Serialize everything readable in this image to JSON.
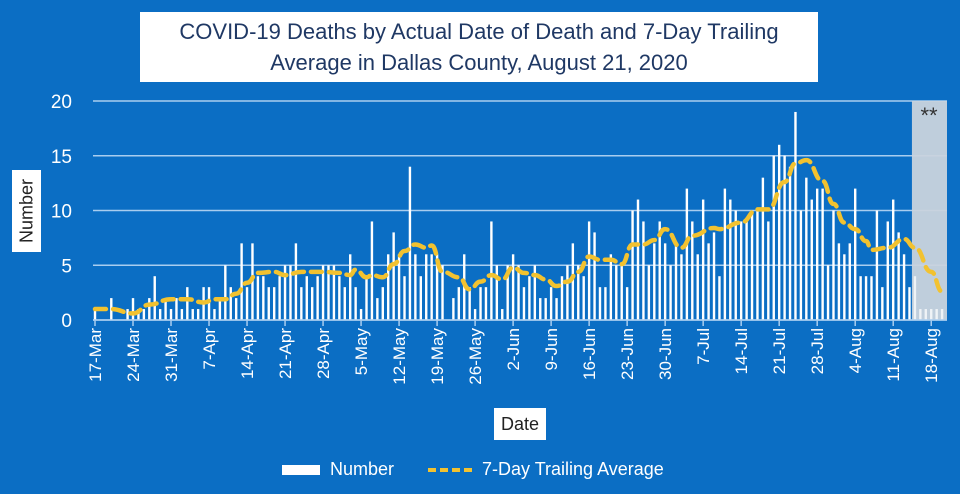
{
  "chart_data": {
    "type": "bar",
    "title": "COVID-19 Deaths by Actual Date of Death and 7-Day Trailing Average in Dallas County, August 21, 2020",
    "title_lines": [
      "COVID-19 Deaths by Actual Date of Death and 7-Day Trailing",
      "Average in Dallas County, August 21, 2020"
    ],
    "xlabel": "Date",
    "ylabel": "Number",
    "ylim": [
      0,
      20
    ],
    "yticks": [
      "0",
      "5",
      "10",
      "15",
      "20"
    ],
    "grid": true,
    "legend_position": "bottom",
    "xtick_labels": [
      "17-Mar",
      "24-Mar",
      "31-Mar",
      "7-Apr",
      "14-Apr",
      "21-Apr",
      "28-Apr",
      "5-May",
      "12-May",
      "19-May",
      "26-May",
      "2-Jun",
      "9-Jun",
      "16-Jun",
      "23-Jun",
      "30-Jun",
      "7-Jul",
      "14-Jul",
      "21-Jul",
      "28-Jul",
      "4-Aug",
      "11-Aug",
      "18-Aug"
    ],
    "dates": [
      "17-Mar",
      "18-Mar",
      "19-Mar",
      "20-Mar",
      "21-Mar",
      "22-Mar",
      "23-Mar",
      "24-Mar",
      "25-Mar",
      "26-Mar",
      "27-Mar",
      "28-Mar",
      "29-Mar",
      "30-Mar",
      "31-Mar",
      "1-Apr",
      "2-Apr",
      "3-Apr",
      "4-Apr",
      "5-Apr",
      "6-Apr",
      "7-Apr",
      "8-Apr",
      "9-Apr",
      "10-Apr",
      "11-Apr",
      "12-Apr",
      "13-Apr",
      "14-Apr",
      "15-Apr",
      "16-Apr",
      "17-Apr",
      "18-Apr",
      "19-Apr",
      "20-Apr",
      "21-Apr",
      "22-Apr",
      "23-Apr",
      "24-Apr",
      "25-Apr",
      "26-Apr",
      "27-Apr",
      "28-Apr",
      "29-Apr",
      "30-Apr",
      "1-May",
      "2-May",
      "3-May",
      "4-May",
      "5-May",
      "6-May",
      "7-May",
      "8-May",
      "9-May",
      "10-May",
      "11-May",
      "12-May",
      "13-May",
      "14-May",
      "15-May",
      "16-May",
      "17-May",
      "18-May",
      "19-May",
      "20-May",
      "21-May",
      "22-May",
      "23-May",
      "24-May",
      "25-May",
      "26-May",
      "27-May",
      "28-May",
      "29-May",
      "30-May",
      "31-May",
      "1-Jun",
      "2-Jun",
      "3-Jun",
      "4-Jun",
      "5-Jun",
      "6-Jun",
      "7-Jun",
      "8-Jun",
      "9-Jun",
      "10-Jun",
      "11-Jun",
      "12-Jun",
      "13-Jun",
      "14-Jun",
      "15-Jun",
      "16-Jun",
      "17-Jun",
      "18-Jun",
      "19-Jun",
      "20-Jun",
      "21-Jun",
      "22-Jun",
      "23-Jun",
      "24-Jun",
      "25-Jun",
      "26-Jun",
      "27-Jun",
      "28-Jun",
      "29-Jun",
      "30-Jun",
      "1-Jul",
      "2-Jul",
      "3-Jul",
      "4-Jul",
      "5-Jul",
      "6-Jul",
      "7-Jul",
      "8-Jul",
      "9-Jul",
      "10-Jul",
      "11-Jul",
      "12-Jul",
      "13-Jul",
      "14-Jul",
      "15-Jul",
      "16-Jul",
      "17-Jul",
      "18-Jul",
      "19-Jul",
      "20-Jul",
      "21-Jul",
      "22-Jul",
      "23-Jul",
      "24-Jul",
      "25-Jul",
      "26-Jul",
      "27-Jul",
      "28-Jul",
      "29-Jul",
      "30-Jul",
      "31-Jul",
      "1-Aug",
      "2-Aug",
      "3-Aug",
      "4-Aug",
      "5-Aug",
      "6-Aug",
      "7-Aug",
      "8-Aug",
      "9-Aug",
      "10-Aug",
      "11-Aug",
      "12-Aug",
      "13-Aug",
      "14-Aug",
      "15-Aug",
      "16-Aug",
      "17-Aug",
      "18-Aug",
      "19-Aug",
      "20-Aug"
    ],
    "series": [
      {
        "name": "Number",
        "type": "bar",
        "color": "#ffffff",
        "values": [
          1,
          0,
          0,
          2,
          0,
          0,
          1,
          2,
          1,
          1,
          2,
          4,
          1,
          2,
          1,
          2,
          1,
          3,
          1,
          1,
          3,
          3,
          1,
          2,
          5,
          3,
          2,
          7,
          3,
          7,
          4,
          4,
          3,
          3,
          4,
          5,
          5,
          7,
          3,
          4,
          3,
          4,
          5,
          5,
          5,
          4,
          3,
          6,
          3,
          1,
          4,
          9,
          2,
          3,
          6,
          8,
          6,
          4,
          14,
          6,
          4,
          6,
          6,
          6,
          5,
          0,
          2,
          3,
          6,
          3,
          1,
          3,
          3,
          9,
          5,
          1,
          5,
          6,
          5,
          3,
          4,
          5,
          2,
          2,
          3,
          2,
          4,
          5,
          7,
          5,
          4,
          9,
          8,
          3,
          3,
          6,
          5,
          5,
          3,
          10,
          11,
          9,
          5,
          7,
          9,
          7,
          5,
          7,
          6,
          12,
          9,
          6,
          11,
          7,
          8,
          4,
          12,
          11,
          10,
          9,
          9,
          10,
          10,
          13,
          9,
          15,
          16,
          15,
          14,
          19,
          10,
          13,
          11,
          12,
          12,
          5,
          10,
          7,
          6,
          7,
          12,
          4,
          4,
          4,
          10,
          3,
          9,
          11,
          8,
          6,
          3,
          4,
          1,
          1,
          1,
          1,
          1
        ]
      },
      {
        "name": "7-Day Trailing Average",
        "type": "line",
        "style": "dashed",
        "color": "#f2c230",
        "points": [
          [
            "17-Mar",
            1.0
          ],
          [
            "20-Mar",
            1.0
          ],
          [
            "24-Mar",
            0.6
          ],
          [
            "27-Mar",
            1.4
          ],
          [
            "31-Mar",
            1.9
          ],
          [
            "3-Apr",
            1.9
          ],
          [
            "6-Apr",
            1.6
          ],
          [
            "8-Apr",
            1.9
          ],
          [
            "10-Apr",
            1.9
          ],
          [
            "12-Apr",
            2.4
          ],
          [
            "14-Apr",
            3.4
          ],
          [
            "16-Apr",
            4.3
          ],
          [
            "19-Apr",
            4.4
          ],
          [
            "21-Apr",
            4.1
          ],
          [
            "24-Apr",
            4.4
          ],
          [
            "28-Apr",
            4.4
          ],
          [
            "1-May",
            4.3
          ],
          [
            "3-May",
            4.1
          ],
          [
            "4-May",
            4.6
          ],
          [
            "6-May",
            3.9
          ],
          [
            "7-May",
            4.1
          ],
          [
            "9-May",
            3.9
          ],
          [
            "11-May",
            5.1
          ],
          [
            "13-May",
            6.3
          ],
          [
            "15-May",
            6.9
          ],
          [
            "17-May",
            6.6
          ],
          [
            "18-May",
            6.8
          ],
          [
            "20-May",
            4.4
          ],
          [
            "23-May",
            3.9
          ],
          [
            "25-May",
            2.8
          ],
          [
            "27-May",
            3.5
          ],
          [
            "29-May",
            4.1
          ],
          [
            "31-May",
            3.7
          ],
          [
            "2-Jun",
            4.8
          ],
          [
            "4-Jun",
            4.3
          ],
          [
            "6-Jun",
            4.1
          ],
          [
            "8-Jun",
            3.7
          ],
          [
            "10-Jun",
            3.1
          ],
          [
            "12-Jun",
            3.5
          ],
          [
            "14-Jun",
            4.4
          ],
          [
            "16-Jun",
            5.8
          ],
          [
            "18-Jun",
            5.5
          ],
          [
            "20-Jun",
            5.5
          ],
          [
            "22-Jun",
            5.1
          ],
          [
            "24-Jun",
            6.9
          ],
          [
            "26-Jun",
            6.9
          ],
          [
            "28-Jun",
            7.3
          ],
          [
            "30-Jun",
            8.3
          ],
          [
            "3-Jul",
            6.6
          ],
          [
            "5-Jul",
            7.7
          ],
          [
            "9-Jul",
            8.4
          ],
          [
            "10-Jul",
            8.3
          ],
          [
            "14-Jul",
            8.9
          ],
          [
            "17-Jul",
            10.1
          ],
          [
            "19-Jul",
            10.1
          ],
          [
            "22-Jul",
            12.6
          ],
          [
            "24-Jul",
            14.3
          ],
          [
            "26-Jul",
            14.6
          ],
          [
            "29-Jul",
            12.7
          ],
          [
            "31-Jul",
            10.6
          ],
          [
            "2-Aug",
            8.9
          ],
          [
            "4-Aug",
            8.3
          ],
          [
            "6-Aug",
            7.2
          ],
          [
            "7-Aug",
            6.4
          ],
          [
            "10-Aug",
            6.6
          ],
          [
            "13-Aug",
            7.4
          ],
          [
            "15-Aug",
            6.6
          ],
          [
            "18-Aug",
            4.4
          ],
          [
            "20-Aug",
            2.6
          ]
        ]
      }
    ],
    "shaded_region": {
      "from": "15-Aug",
      "to": "20-Aug",
      "label": "**",
      "color": "#c9d3dd"
    },
    "background_color": "#0b6ec4"
  },
  "legend": {
    "bar_label": "Number",
    "line_label": "7-Day Trailing Average"
  }
}
